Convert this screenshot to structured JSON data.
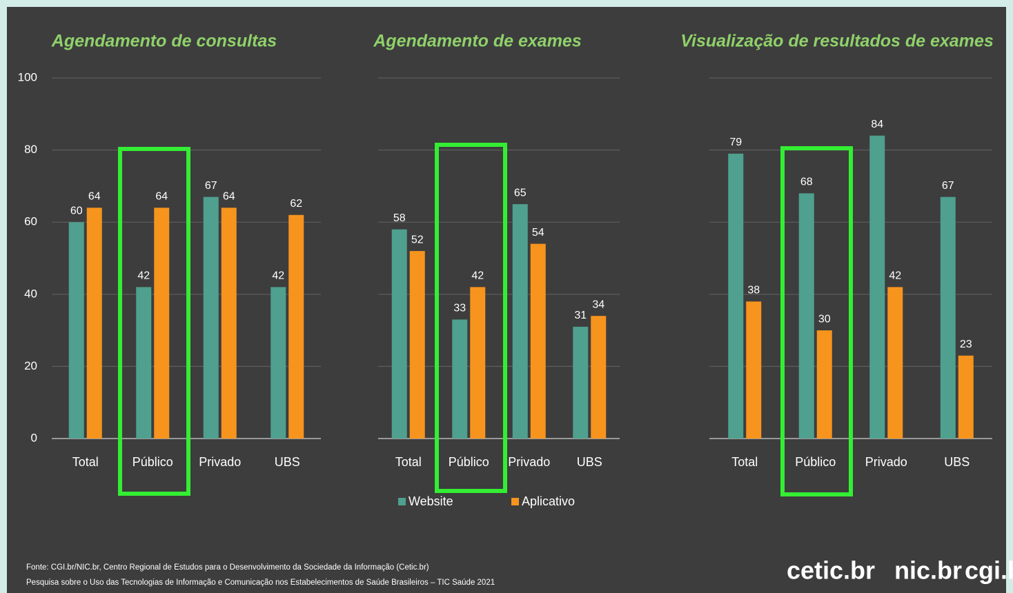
{
  "chart_data": [
    {
      "type": "bar",
      "title": "Agendamento de consultas",
      "categories": [
        "Total",
        "Público",
        "Privado",
        "UBS"
      ],
      "series": [
        {
          "name": "Website",
          "color": "#4fa08f",
          "values": [
            60,
            42,
            67,
            42
          ]
        },
        {
          "name": "Aplicativo",
          "color": "#f7941d",
          "values": [
            64,
            64,
            64,
            62
          ]
        }
      ],
      "ylim": [
        0,
        100
      ],
      "yticks": [
        0,
        20,
        40,
        60,
        80,
        100
      ],
      "grid": true
    },
    {
      "type": "bar",
      "title": "Agendamento de exames",
      "categories": [
        "Total",
        "Público",
        "Privado",
        "UBS"
      ],
      "series": [
        {
          "name": "Website",
          "color": "#4fa08f",
          "values": [
            58,
            33,
            65,
            31
          ]
        },
        {
          "name": "Aplicativo",
          "color": "#f7941d",
          "values": [
            52,
            42,
            54,
            34
          ]
        }
      ],
      "ylim": [
        0,
        100
      ],
      "grid": true,
      "legend": "bottom"
    },
    {
      "type": "bar",
      "title": "Visualização de resultados de exames",
      "categories": [
        "Total",
        "Público",
        "Privado",
        "UBS"
      ],
      "series": [
        {
          "name": "Website",
          "color": "#4fa08f",
          "values": [
            79,
            68,
            84,
            67
          ]
        },
        {
          "name": "Aplicativo",
          "color": "#f7941d",
          "values": [
            38,
            30,
            42,
            23
          ]
        }
      ],
      "ylim": [
        0,
        100
      ],
      "grid": true
    }
  ],
  "footer": {
    "source": [
      "Fonte: CGI.br/NIC.br, Centro Regional de Estudos para o Desenvolvimento da Sociedade da Informação (Cetic.br)",
      "Pesquisa sobre o Uso das Tecnologias de Informação e Comunicação nos Estabelecimentos de Saúde Brasileiros – TIC Saúde 2021"
    ],
    "logos": [
      "cetic.br",
      "nic.br",
      "cgi.br"
    ]
  }
}
